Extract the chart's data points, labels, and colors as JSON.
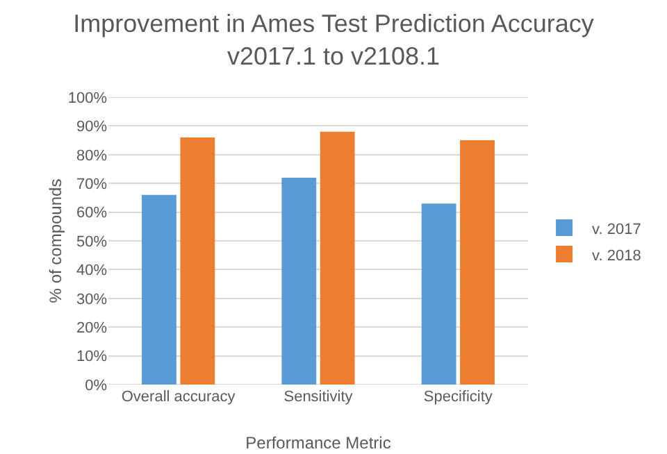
{
  "chart_data": {
    "type": "bar",
    "title": "Improvement in Ames Test Prediction Accuracy\nv2017.1 to v2108.1",
    "xlabel": "Performance Metric",
    "ylabel": "% of compounds",
    "categories": [
      "Overall accuracy",
      "Sensitivity",
      "Specificity"
    ],
    "series": [
      {
        "name": "v. 2017",
        "color": "#5b9bd5",
        "values": [
          66,
          72,
          63
        ]
      },
      {
        "name": "v. 2018",
        "color": "#ed7d31",
        "values": [
          86,
          88,
          85
        ]
      }
    ],
    "ylim": [
      0,
      100
    ],
    "yticks": [
      {
        "value": 0,
        "label": "0%"
      },
      {
        "value": 10,
        "label": "10%"
      },
      {
        "value": 20,
        "label": "20%"
      },
      {
        "value": 30,
        "label": "30%"
      },
      {
        "value": 40,
        "label": "40%"
      },
      {
        "value": 50,
        "label": "50%"
      },
      {
        "value": 60,
        "label": "60%"
      },
      {
        "value": 70,
        "label": "70%"
      },
      {
        "value": 80,
        "label": "80%"
      },
      {
        "value": 90,
        "label": "90%"
      },
      {
        "value": 100,
        "label": "100%"
      }
    ],
    "grid": "y",
    "legend": "right"
  }
}
